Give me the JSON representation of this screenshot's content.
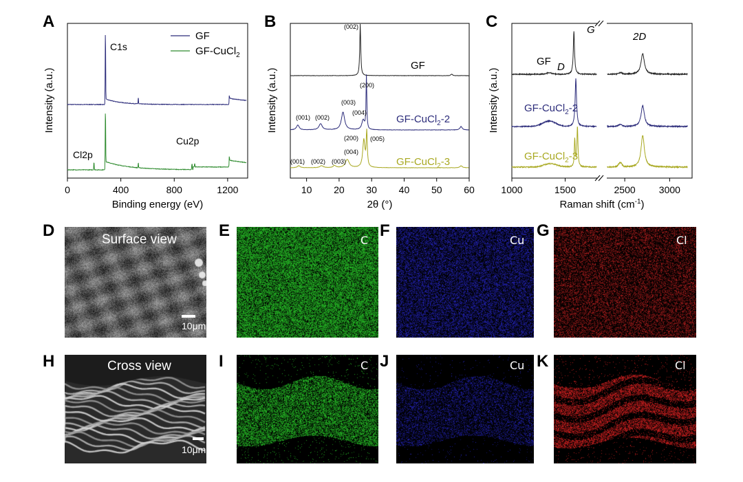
{
  "panel_labels": {
    "A": "A",
    "B": "B",
    "C": "C",
    "D": "D",
    "E": "E",
    "F": "F",
    "G": "G",
    "H": "H",
    "I": "I",
    "J": "J",
    "K": "K"
  },
  "chart_data": [
    {
      "type": "line",
      "panel": "A",
      "xlabel": "Binding energy (eV)",
      "ylabel": "Intensity (a.u.)",
      "xlim": [
        0,
        1350
      ],
      "xticks": [
        "0",
        "400",
        "800",
        "1200"
      ],
      "legend_position": "top-right",
      "series": [
        {
          "name": "GF",
          "color": "#2b2b7a",
          "peaks": [
            {
              "x": 284.6,
              "label": "C1s"
            },
            {
              "x": 531
            },
            {
              "x": 1215
            }
          ]
        },
        {
          "name": "GF-CuCl",
          "name_sub": "2",
          "color": "#2e8b2e",
          "peaks": [
            {
              "x": 199,
              "label": "Cl2p"
            },
            {
              "x": 284.6
            },
            {
              "x": 531
            },
            {
              "x": 933,
              "label": "Cu2p"
            },
            {
              "x": 953
            },
            {
              "x": 1215
            }
          ]
        }
      ],
      "annotations": [
        "C1s",
        "Cl2p",
        "Cu2p"
      ]
    },
    {
      "type": "line",
      "panel": "B",
      "xlabel": "2θ (°)",
      "ylabel": "Intensity (a.u.)",
      "xlim": [
        5,
        60
      ],
      "xticks": [
        "10",
        "20",
        "30",
        "40",
        "50",
        "60"
      ],
      "series": [
        {
          "name": "GF",
          "color": "#222222",
          "peaks": [
            {
              "x": 26.5,
              "label": "(002)"
            },
            {
              "x": 54.6
            }
          ]
        },
        {
          "name_prefix": "GF-CuCl",
          "name_sub": "2",
          "name_suffix": "-2",
          "color": "#2b2b7a",
          "peaks": [
            {
              "x": 7.3,
              "label": "(001)"
            },
            {
              "x": 14.3,
              "label": "(002)"
            },
            {
              "x": 21.3,
              "label": "(003)"
            },
            {
              "x": 27.5,
              "label": "(200)"
            },
            {
              "x": 28.5,
              "label": "(004)"
            },
            {
              "x": 57.5
            }
          ]
        },
        {
          "name_prefix": "GF-CuCl",
          "name_sub": "2",
          "name_suffix": "-3",
          "color": "#a8a820",
          "peaks": [
            {
              "x": 7.6,
              "label": "(001)"
            },
            {
              "x": 14.6,
              "label": "(002)"
            },
            {
              "x": 18.6,
              "label": "(003)"
            },
            {
              "x": 22.5,
              "label": "(004)"
            },
            {
              "x": 27.6,
              "label": "(200)"
            },
            {
              "x": 28.5,
              "label": "(005)"
            },
            {
              "x": 57.5
            }
          ]
        }
      ],
      "series_labels": {
        "gf": "GF",
        "cucl": "GF-CuCl",
        "sub": "2",
        "s2": "-2",
        "s3": "-3"
      }
    },
    {
      "type": "line",
      "panel": "C",
      "xlabel_prefix": "Raman shift (cm",
      "xlabel_sup": "-1",
      "xlabel_suffix": ")",
      "ylabel": "Intensity (a.u.)",
      "xlim": [
        1000,
        3250
      ],
      "axis_break": [
        1800,
        2300
      ],
      "xticks": [
        "1000",
        "1500",
        "2500",
        "3000"
      ],
      "band_labels": {
        "D": "D",
        "G": "G",
        "2D": "2D"
      },
      "series": [
        {
          "name": "GF",
          "color": "#222222",
          "peaks": [
            {
              "x": 1350,
              "label": "D"
            },
            {
              "x": 1582,
              "label": "G"
            },
            {
              "x": 2700,
              "label": "2D"
            }
          ]
        },
        {
          "name_prefix": "GF-CuCl",
          "name_sub": "2",
          "name_suffix": "-2",
          "color": "#2b2b7a",
          "peaks": [
            {
              "x": 1350
            },
            {
              "x": 1600
            },
            {
              "x": 2450
            },
            {
              "x": 2700
            }
          ]
        },
        {
          "name_prefix": "GF-CuCl",
          "name_sub": "2",
          "name_suffix": "-3",
          "color": "#a8a820",
          "peaks": [
            {
              "x": 1350
            },
            {
              "x": 1590
            },
            {
              "x": 1615
            },
            {
              "x": 2450
            },
            {
              "x": 2700
            }
          ]
        }
      ]
    }
  ],
  "images": {
    "D": {
      "label": "Surface view",
      "scale": "10μm"
    },
    "E": {
      "label": "C",
      "color": "#27c227"
    },
    "F": {
      "label": "Cu",
      "color": "#2222b4"
    },
    "G": {
      "label": "Cl",
      "color": "#b41e1e"
    },
    "H": {
      "label": "Cross view",
      "scale": "10μm"
    },
    "I": {
      "label": "C",
      "color": "#27c227"
    },
    "J": {
      "label": "Cu",
      "color": "#2222b4"
    },
    "K": {
      "label": "Cl",
      "color": "#d42020"
    }
  }
}
